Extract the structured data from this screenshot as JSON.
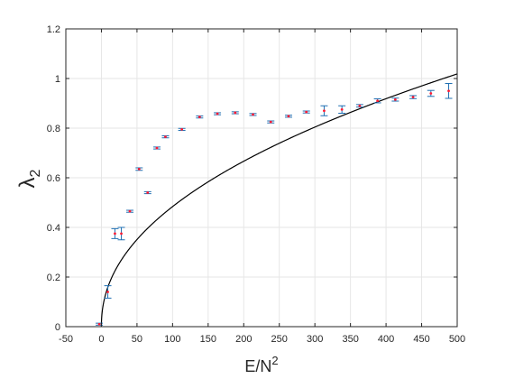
{
  "chart_data": {
    "type": "scatter",
    "title": "",
    "xlabel": {
      "base": "E/N",
      "sup": "2"
    },
    "ylabel": {
      "base": "λ",
      "sub": "2"
    },
    "xlim": [
      -50,
      500
    ],
    "ylim": [
      0,
      1.2
    ],
    "xticks": [
      -50,
      0,
      50,
      100,
      150,
      200,
      250,
      300,
      350,
      400,
      450,
      500
    ],
    "yticks": [
      0,
      0.2,
      0.4,
      0.6,
      0.8,
      1,
      1.2
    ],
    "ytick_labels": [
      "0",
      "0.2",
      "0.4",
      "0.6",
      "0.8",
      "1",
      "1.2"
    ],
    "grid": true,
    "colors": {
      "points": "#ff1a33",
      "errorbars": "#1f6fb2",
      "curve": "#000000",
      "axes": "#262626",
      "grid": "#e6e6e6"
    },
    "series": [
      {
        "kind": "errorbar",
        "x": [
          -3,
          9,
          19,
          28,
          40,
          53,
          65,
          78,
          90,
          113,
          138,
          163,
          188,
          213,
          238,
          263,
          288,
          313,
          338,
          363,
          388,
          413,
          438,
          463,
          488
        ],
        "y": [
          0.01,
          0.14,
          0.375,
          0.375,
          0.465,
          0.635,
          0.54,
          0.72,
          0.765,
          0.795,
          0.845,
          0.858,
          0.862,
          0.855,
          0.825,
          0.848,
          0.865,
          0.87,
          0.875,
          0.89,
          0.91,
          0.915,
          0.925,
          0.94,
          0.95
        ],
        "err": [
          0.004,
          0.025,
          0.02,
          0.025,
          0.004,
          0.005,
          0.004,
          0.004,
          0.004,
          0.004,
          0.004,
          0.004,
          0.004,
          0.004,
          0.004,
          0.004,
          0.004,
          0.02,
          0.015,
          0.005,
          0.008,
          0.006,
          0.006,
          0.012,
          0.03
        ]
      },
      {
        "kind": "curve",
        "x_start": 0,
        "x_end": 500,
        "formula": "y = 0.0575 * x^0.4625"
      }
    ]
  }
}
